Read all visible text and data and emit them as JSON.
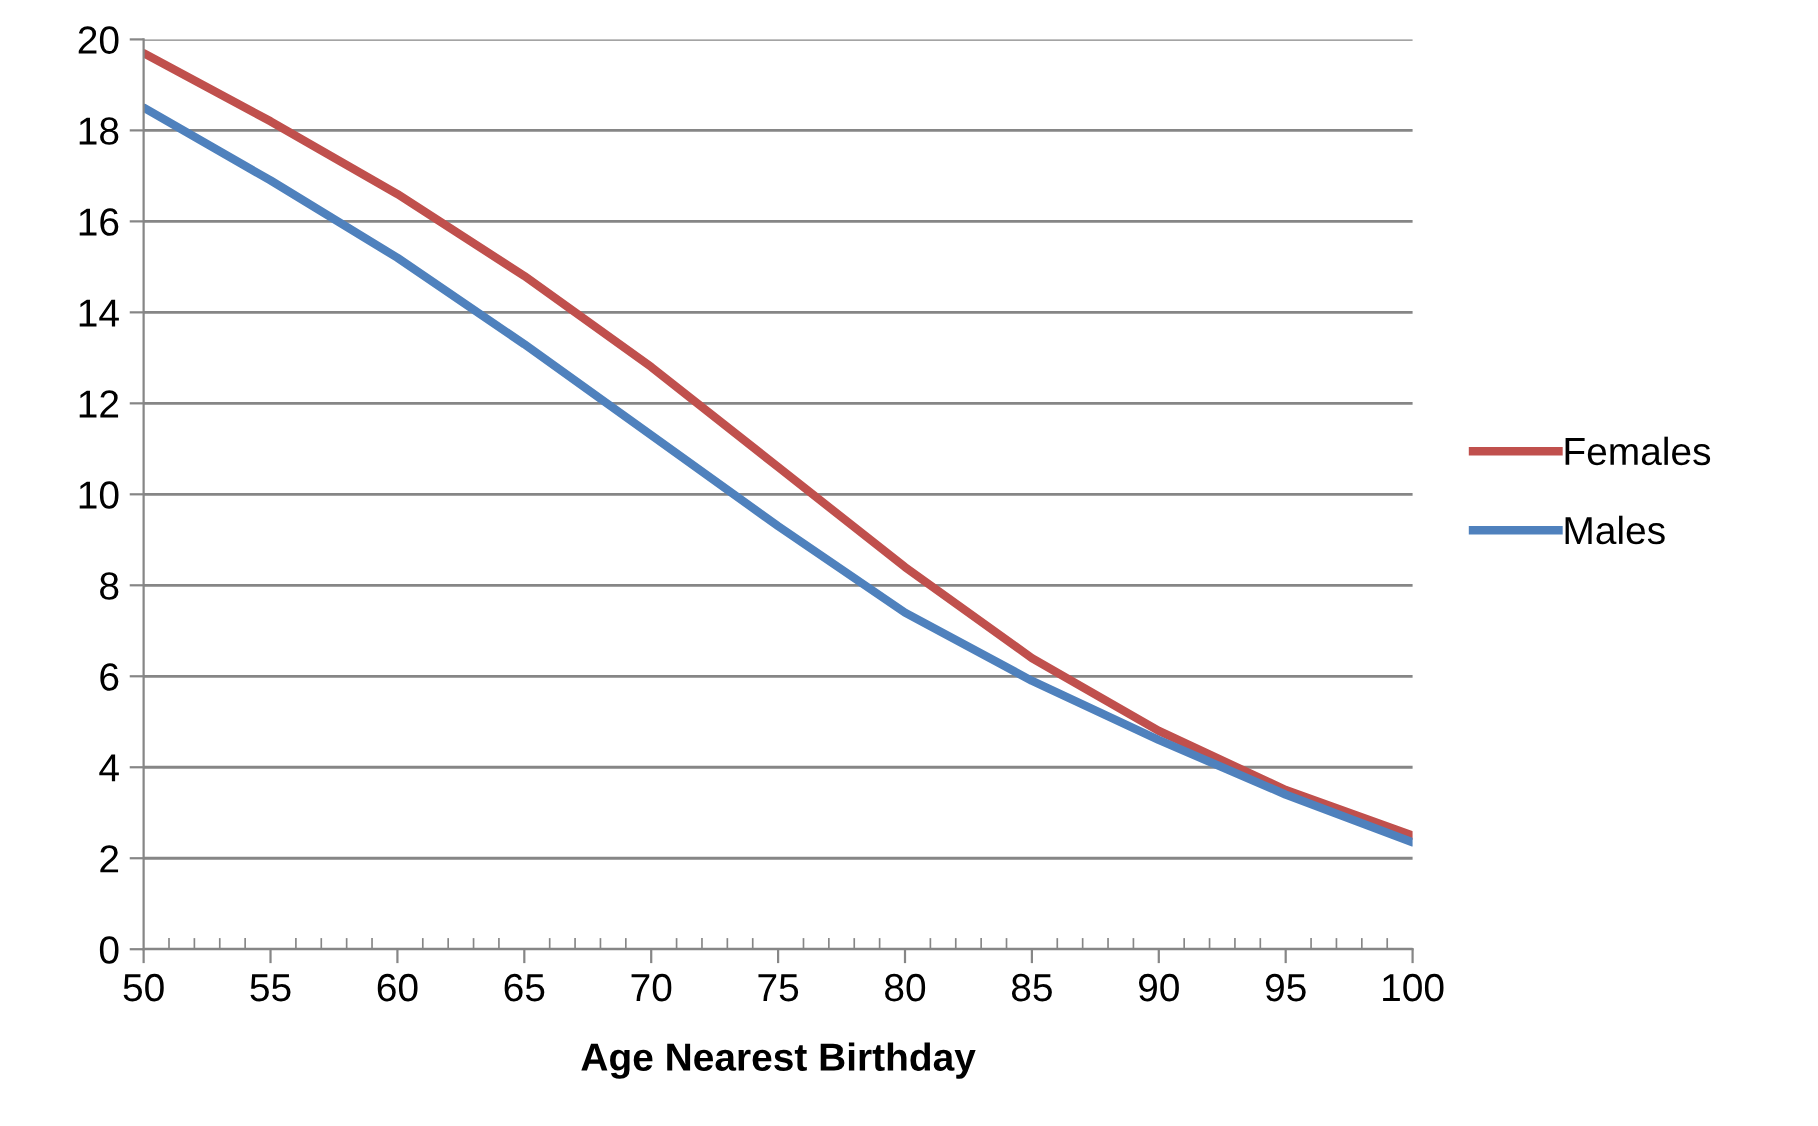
{
  "chart_data": {
    "type": "line",
    "xlabel": "Age Nearest Birthday",
    "x": [
      50,
      55,
      60,
      65,
      70,
      75,
      80,
      85,
      90,
      95,
      100
    ],
    "series": [
      {
        "name": "Females",
        "color": "#c0504d",
        "values": [
          19.7,
          18.2,
          16.6,
          14.8,
          12.8,
          10.6,
          8.4,
          6.4,
          4.8,
          3.5,
          2.5
        ]
      },
      {
        "name": "Males",
        "color": "#4f81bd",
        "values": [
          18.5,
          16.9,
          15.2,
          13.3,
          11.3,
          9.3,
          7.4,
          5.9,
          4.6,
          3.4,
          2.35
        ]
      }
    ],
    "xlim": [
      50,
      100
    ],
    "xticks": [
      50,
      55,
      60,
      65,
      70,
      75,
      80,
      85,
      90,
      95,
      100
    ],
    "ylim": [
      0,
      20
    ],
    "yticks": [
      0,
      2,
      4,
      6,
      8,
      10,
      12,
      14,
      16,
      18,
      20
    ],
    "grid": "y",
    "legend": "right",
    "marker": "none",
    "line_style": "solid"
  }
}
